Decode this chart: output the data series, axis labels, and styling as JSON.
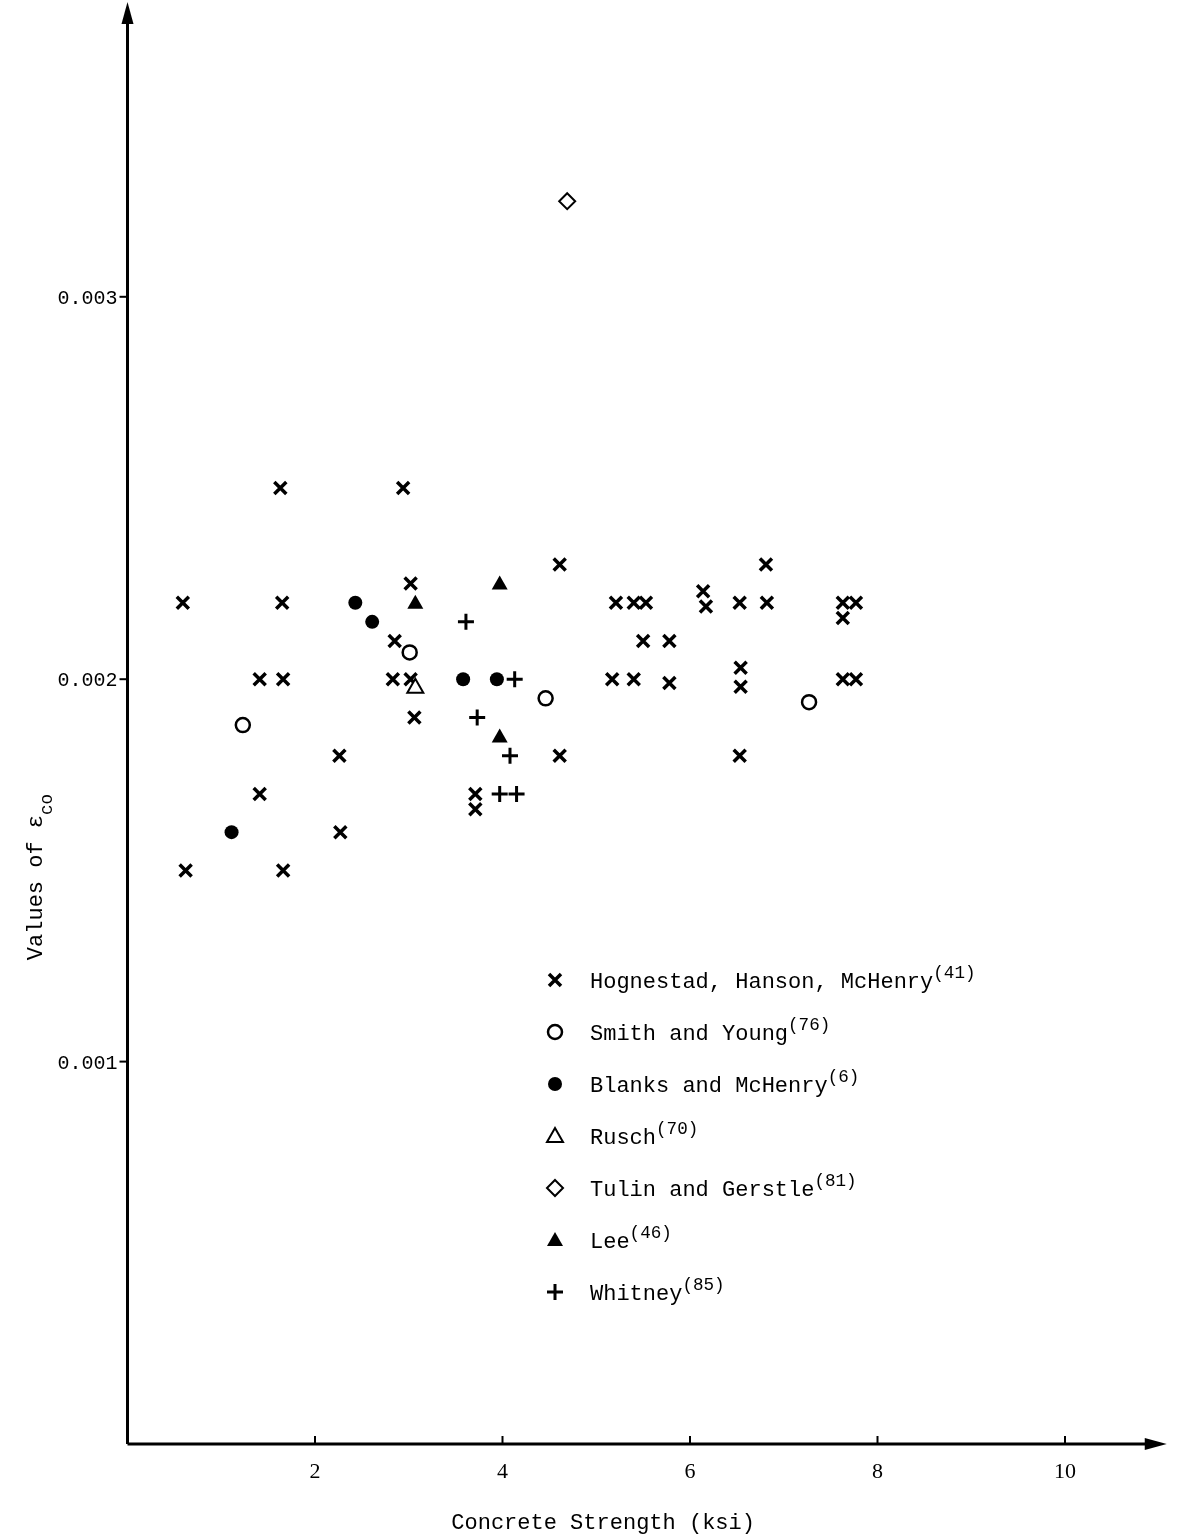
{
  "chart_data": {
    "type": "scatter",
    "xlabel": "Concrete Strength (ksi)",
    "ylabel": "Values of ε$_{co}$",
    "xlim": [
      0,
      11
    ],
    "ylim": [
      0,
      0.00375
    ],
    "xticks": [
      2,
      4,
      6,
      8,
      10
    ],
    "yticks": [
      0.001,
      0.002,
      0.003
    ],
    "grid": false,
    "legend": "bottom right",
    "series": [
      {
        "name": "Hognestad, Hanson, McHenry$^{(41)}$",
        "color": "#000000",
        "marker": "x",
        "x": [
          0.59,
          1.63,
          1.65,
          1.41,
          1.66,
          2.26,
          1.41,
          2.27,
          0.62,
          1.66,
          2.94,
          3.02,
          2.85,
          2.83,
          3.02,
          3.06,
          4.61,
          4.61,
          3.71,
          3.71,
          5.21,
          5.4,
          5.53,
          5.5,
          5.78,
          5.17,
          5.4,
          5.78,
          6.14,
          6.17,
          6.53,
          6.81,
          6.82,
          6.54,
          6.54,
          6.53,
          7.63,
          7.77,
          7.63,
          7.63,
          7.77
        ],
        "values": [
          0.0022,
          0.0025,
          0.0022,
          0.002,
          0.002,
          0.0018,
          0.0017,
          0.0016,
          0.0015,
          0.0015,
          0.0025,
          0.00225,
          0.0021,
          0.002,
          0.002,
          0.0019,
          0.0023,
          0.0018,
          0.0017,
          0.00166,
          0.0022,
          0.0022,
          0.0022,
          0.0021,
          0.0021,
          0.002,
          0.002,
          0.00199,
          0.00223,
          0.00219,
          0.0022,
          0.0023,
          0.0022,
          0.00203,
          0.00198,
          0.0018,
          0.0022,
          0.0022,
          0.00216,
          0.002,
          0.002
        ]
      },
      {
        "name": "Smith and Young$^{(76)}$",
        "color": "#000000",
        "marker": "circle-open",
        "x": [
          1.23,
          3.01,
          4.46,
          7.27
        ],
        "values": [
          0.00188,
          0.00207,
          0.00195,
          0.00194
        ]
      },
      {
        "name": "Blanks and McHenry$^{(6)}$",
        "color": "#000000",
        "marker": "circle",
        "x": [
          2.43,
          2.61,
          3.58,
          3.94,
          1.11
        ],
        "values": [
          0.0022,
          0.00215,
          0.002,
          0.002,
          0.0016
        ]
      },
      {
        "name": "Rusch$^{(70)}$",
        "color": "#000000",
        "marker": "triangle-open",
        "x": [
          3.07
        ],
        "values": [
          0.00198
        ]
      },
      {
        "name": "Tulin and Gerstle$^{(81)}$",
        "color": "#000000",
        "marker": "diamond-open",
        "x": [
          4.69
        ],
        "values": [
          0.00325
        ]
      },
      {
        "name": "Lee$^{(46)}$",
        "color": "#000000",
        "marker": "triangle",
        "x": [
          3.07,
          3.97,
          3.97
        ],
        "values": [
          0.0022,
          0.00225,
          0.00185
        ]
      },
      {
        "name": "Whitney$^{(85)}$",
        "color": "#000000",
        "marker": "plus",
        "x": [
          3.61,
          4.13,
          3.73,
          4.08,
          3.97,
          4.15
        ],
        "values": [
          0.00215,
          0.002,
          0.0019,
          0.0018,
          0.0017,
          0.0017
        ]
      }
    ]
  }
}
